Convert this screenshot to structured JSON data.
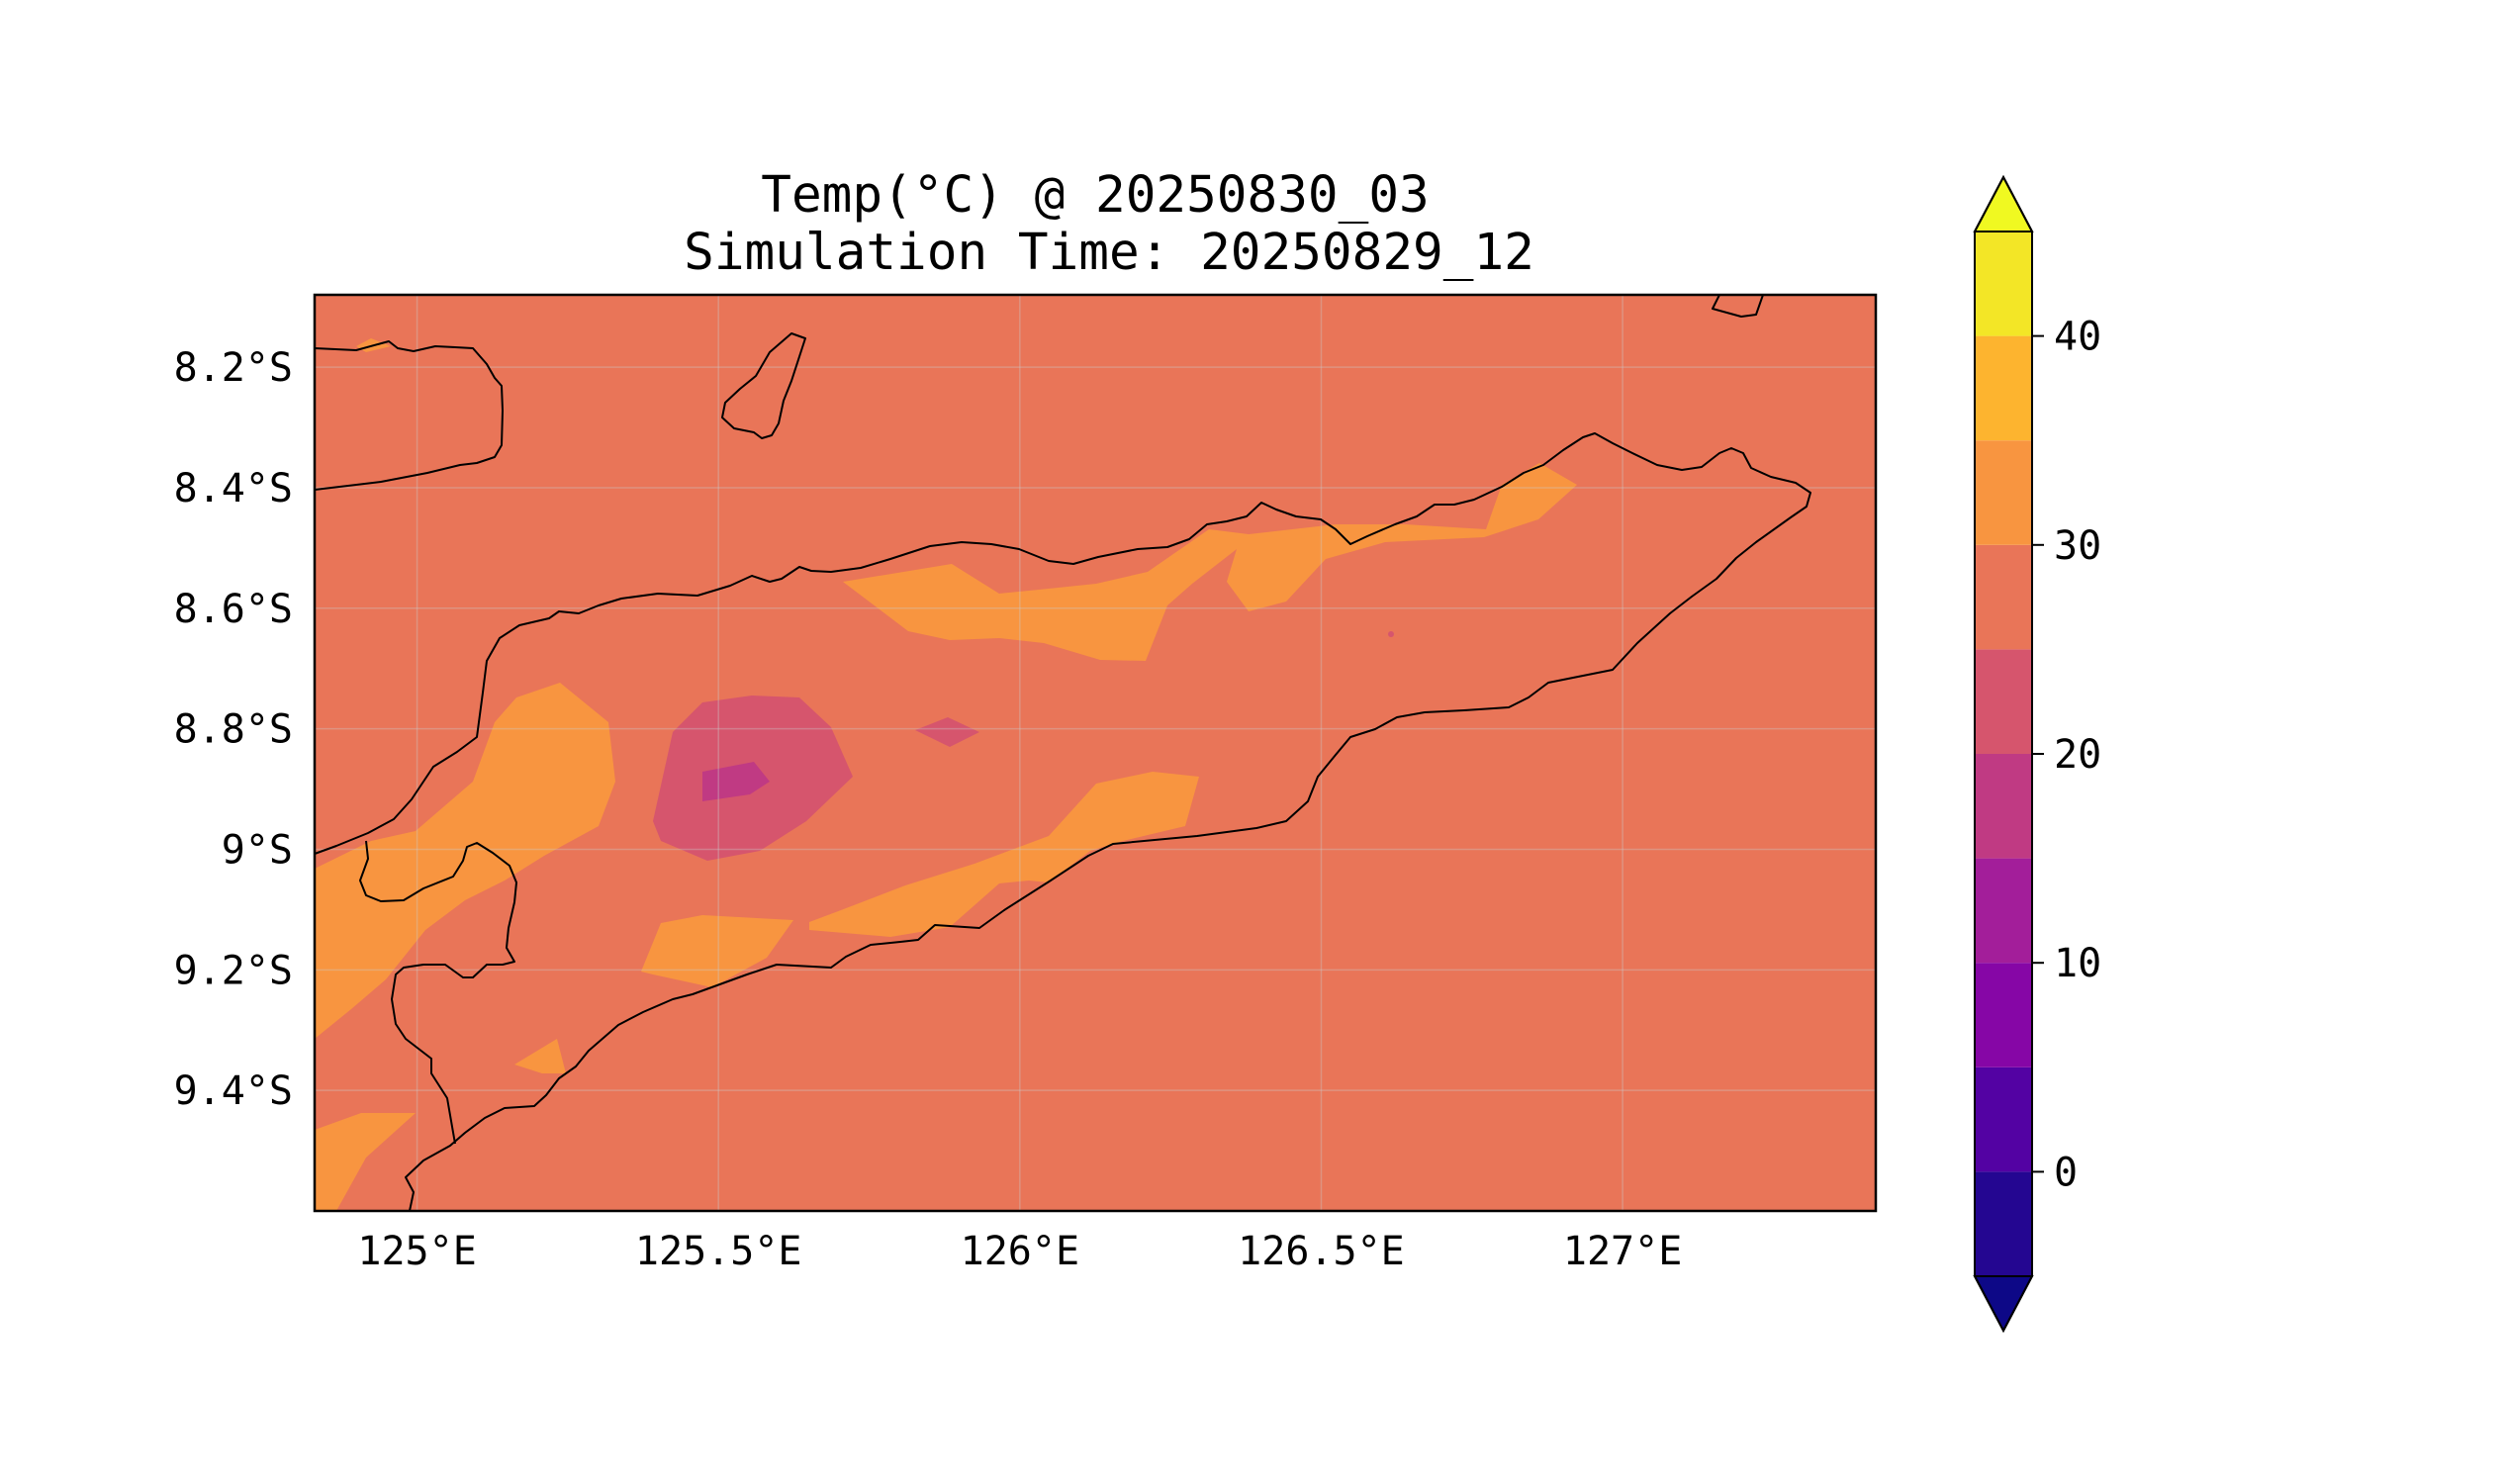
{
  "title": {
    "line1": "Temp(°C) @ 20250830_03",
    "line2": "Simulation Time: 20250829_12"
  },
  "map": {
    "lon_range": [
      124.83,
      127.42
    ],
    "lat_range": [
      -9.6,
      -8.08
    ],
    "x_ticks": [
      {
        "value": 125.0,
        "label": "125°E"
      },
      {
        "value": 125.5,
        "label": "125.5°E"
      },
      {
        "value": 126.0,
        "label": "126°E"
      },
      {
        "value": 126.5,
        "label": "126.5°E"
      },
      {
        "value": 127.0,
        "label": "127°E"
      }
    ],
    "y_ticks": [
      {
        "value": -8.2,
        "label": "8.2°S"
      },
      {
        "value": -8.4,
        "label": "8.4°S"
      },
      {
        "value": -8.6,
        "label": "8.6°S"
      },
      {
        "value": -8.8,
        "label": "8.8°S"
      },
      {
        "value": -9.0,
        "label": "9°S"
      },
      {
        "value": -9.2,
        "label": "9.2°S"
      },
      {
        "value": -9.4,
        "label": "9.4°S"
      }
    ],
    "background_level": "25-30",
    "gridlines": true
  },
  "colorbar": {
    "ticks": [
      {
        "value": 0,
        "label": "0"
      },
      {
        "value": 10,
        "label": "10"
      },
      {
        "value": 20,
        "label": "20"
      },
      {
        "value": 30,
        "label": "30"
      },
      {
        "value": 40,
        "label": "40"
      }
    ],
    "levels": [
      {
        "from": -5,
        "to": 0,
        "color": "#240691"
      },
      {
        "from": 0,
        "to": 5,
        "color": "#5302a3"
      },
      {
        "from": 5,
        "to": 10,
        "color": "#8606a6"
      },
      {
        "from": 10,
        "to": 15,
        "color": "#a31e9a"
      },
      {
        "from": 15,
        "to": 20,
        "color": "#c03a83"
      },
      {
        "from": 20,
        "to": 25,
        "color": "#d6556d"
      },
      {
        "from": 25,
        "to": 30,
        "color": "#e97558"
      },
      {
        "from": 30,
        "to": 35,
        "color": "#f89540"
      },
      {
        "from": 35,
        "to": 40,
        "color": "#fdb42f"
      },
      {
        "from": 40,
        "to": 45,
        "color": "#f3e626"
      }
    ],
    "under_color": "#0d0887",
    "over_color": "#f0f921",
    "extend": "both"
  },
  "colors": {
    "background_fill": "#e97558",
    "warm_fill": "#f89540",
    "hot_fill": "#fdb42f",
    "cool_fill": "#d6556d",
    "cooler_fill": "#c03a83",
    "coastline": "#000000"
  }
}
